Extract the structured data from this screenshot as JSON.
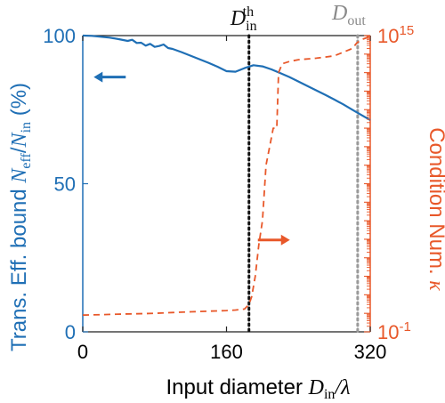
{
  "chart_data": {
    "type": "line",
    "colors": {
      "left": "#1f6fb5",
      "right": "#e8582a",
      "threshold": "#111111",
      "out": "#9a9a9a"
    },
    "x": {
      "range": [
        0,
        320
      ],
      "ticks": [
        0,
        160,
        320
      ],
      "tick_labels": [
        "0",
        "160",
        "320"
      ],
      "label_main": "Input diameter ",
      "label_sym": "D",
      "label_sub": "in",
      "label_tail": "/λ"
    },
    "y_left": {
      "range": [
        0,
        100
      ],
      "ticks": [
        0,
        50,
        100
      ],
      "tick_labels": [
        "0",
        "50",
        "100"
      ],
      "label_main": "Trans. Eff. bound ",
      "label_sym1": "N",
      "label_sub1": "eff",
      "label_slash": "/",
      "label_sym2": "N",
      "label_sub2": "in",
      "label_unit": " (%)"
    },
    "y_right": {
      "scale": "log",
      "range": [
        0.1,
        1000000000000000.0
      ],
      "tick_labels": [
        {
          "base": "10",
          "exp": "-1",
          "value": 0.1
        },
        {
          "base": "10",
          "exp": "15",
          "value": 1000000000000000.0
        }
      ],
      "label_main": "Condition Num. ",
      "label_sym": "κ"
    },
    "series": [
      {
        "axis": "left",
        "style": "solid",
        "x": [
          0,
          10,
          20,
          30,
          40,
          50,
          55,
          60,
          65,
          70,
          75,
          80,
          85,
          90,
          95,
          100,
          110,
          120,
          130,
          140,
          150,
          160,
          170,
          180,
          190,
          200,
          210,
          220,
          230,
          240,
          250,
          260,
          270,
          280,
          290,
          300,
          310,
          320
        ],
        "values": [
          100,
          99.9,
          99.6,
          99.3,
          98.8,
          98.2,
          98.6,
          97.5,
          97.6,
          96.6,
          97.2,
          96.2,
          96.5,
          97.0,
          95.8,
          95.5,
          94.4,
          93.2,
          92.0,
          90.8,
          89.5,
          88.0,
          87.8,
          89.0,
          90.0,
          89.6,
          88.6,
          87.3,
          86.0,
          84.5,
          83.0,
          81.5,
          80.0,
          78.4,
          76.8,
          75.0,
          73.2,
          71.5
        ]
      },
      {
        "axis": "right",
        "style": "dashed",
        "x": [
          0,
          20,
          40,
          60,
          80,
          100,
          120,
          140,
          160,
          170,
          180,
          185,
          188,
          192,
          196,
          200,
          204,
          208,
          212,
          216,
          218,
          222,
          230,
          240,
          260,
          280,
          300,
          305,
          310,
          320
        ],
        "values": [
          0.8,
          0.85,
          0.9,
          0.95,
          1.0,
          1.1,
          1.2,
          1.3,
          1.4,
          1.5,
          1.7,
          3,
          8,
          100,
          5000,
          100000.0,
          100000000.0,
          1000000000.0,
          10000000000.0,
          10000000000.0,
          10000000000000.0,
          30000000000000.0,
          40000000000000.0,
          50000000000000.0,
          60000000000000.0,
          80000000000000.0,
          200000000000000.0,
          400000000000000.0,
          600000000000000.0,
          900000000000000.0
        ]
      }
    ],
    "vlines": [
      {
        "x": 185,
        "style": "dotted",
        "color_key": "threshold",
        "label_sym": "D",
        "label_sub": "in",
        "label_sup": "th"
      },
      {
        "x": 306,
        "style": "dotted",
        "color_key": "out",
        "label_sym": "D",
        "label_sub": "out"
      }
    ],
    "annotations": [
      {
        "direction": "left",
        "x": 30,
        "y_left": 86,
        "axis": "left"
      },
      {
        "direction": "right",
        "x": 185,
        "y_left": 31,
        "axis": "right"
      }
    ]
  }
}
